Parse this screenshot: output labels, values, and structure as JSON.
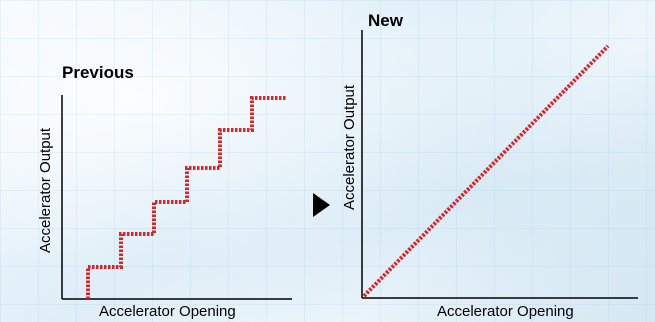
{
  "previous": {
    "title": "Previous",
    "ylabel": "Accelerator Output",
    "xlabel": "Accelerator Opening",
    "line_color": "#d9252a",
    "curve": "staircase"
  },
  "new": {
    "title": "New",
    "ylabel": "Accelerator Output",
    "xlabel": "Accelerator Opening",
    "line_color": "#d9252a",
    "curve": "linear"
  },
  "arrow": {
    "icon": "right-triangle-arrow-icon"
  }
}
